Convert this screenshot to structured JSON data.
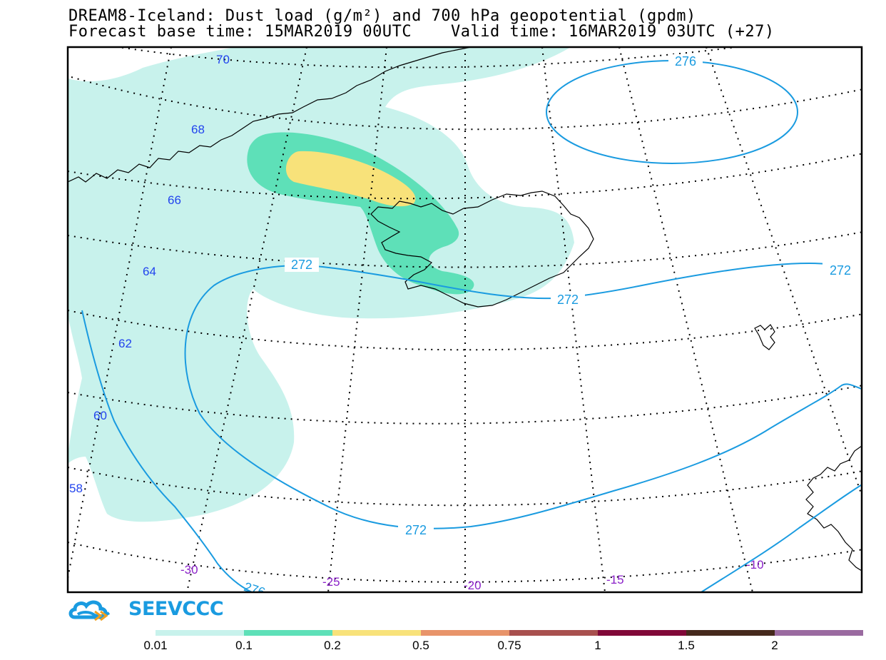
{
  "title": {
    "line1": "DREAM8-Iceland: Dust load (g/m²) and 700 hPa geopotential (gpdm)",
    "line2": "Forecast base time: 15MAR2019 00UTC    Valid time: 16MAR2019 03UTC (+27)"
  },
  "logo": {
    "text": "SEEVCCC",
    "icon": "cloud-logo-icon"
  },
  "latitude_labels": [
    "70",
    "68",
    "66",
    "64",
    "62",
    "60",
    "58"
  ],
  "longitude_labels": [
    "-30",
    "-25",
    "-20",
    "-15",
    "-10"
  ],
  "contour_labels": {
    "top_closed": "276",
    "upper_left": "272",
    "center": "272",
    "right": "272",
    "bottom": "272",
    "bottom_left": "276"
  },
  "colorbar": {
    "ticks": [
      "0.01",
      "0.1",
      "0.2",
      "0.5",
      "0.75",
      "1",
      "1.5",
      "2"
    ],
    "colors": [
      "#c8f2ec",
      "#5ee0b8",
      "#f8e27a",
      "#e8946a",
      "#a8504e",
      "#800838",
      "#45291c",
      "#9a6aa0"
    ]
  },
  "colors": {
    "dust_low": "#c8f2ec",
    "dust_mid": "#5ee0b8",
    "dust_high": "#f8e27a",
    "contour": "#1a9be0",
    "lat_label": "#2244ee",
    "lon_label": "#8a20c8"
  }
}
